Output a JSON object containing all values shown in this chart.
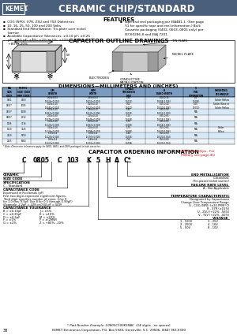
{
  "title": "CERAMIC CHIP/STANDARD",
  "header_bg": "#4a5f7c",
  "header_text_color": "#ffffff",
  "kemet_text": "KEMET",
  "features_title": "FEATURES",
  "outline_title": "CAPACITOR OUTLINE DRAWINGS",
  "dimensions_title": "DIMENSIONS—MILLIMETERS AND (INCHES)",
  "ordering_title": "CAPACITOR ORDERING INFORMATION",
  "page_number": "38",
  "footer": "KEMET Electronics Corporation, P.O. Box 5928, Greenville, S.C. 29606, (864) 963-6300",
  "part_number_example": "* Part Number Example: C0805C100K5RAC  (14 digits - no spaces)",
  "bg_color": "#ffffff",
  "table_header_bg": "#7a9abf"
}
